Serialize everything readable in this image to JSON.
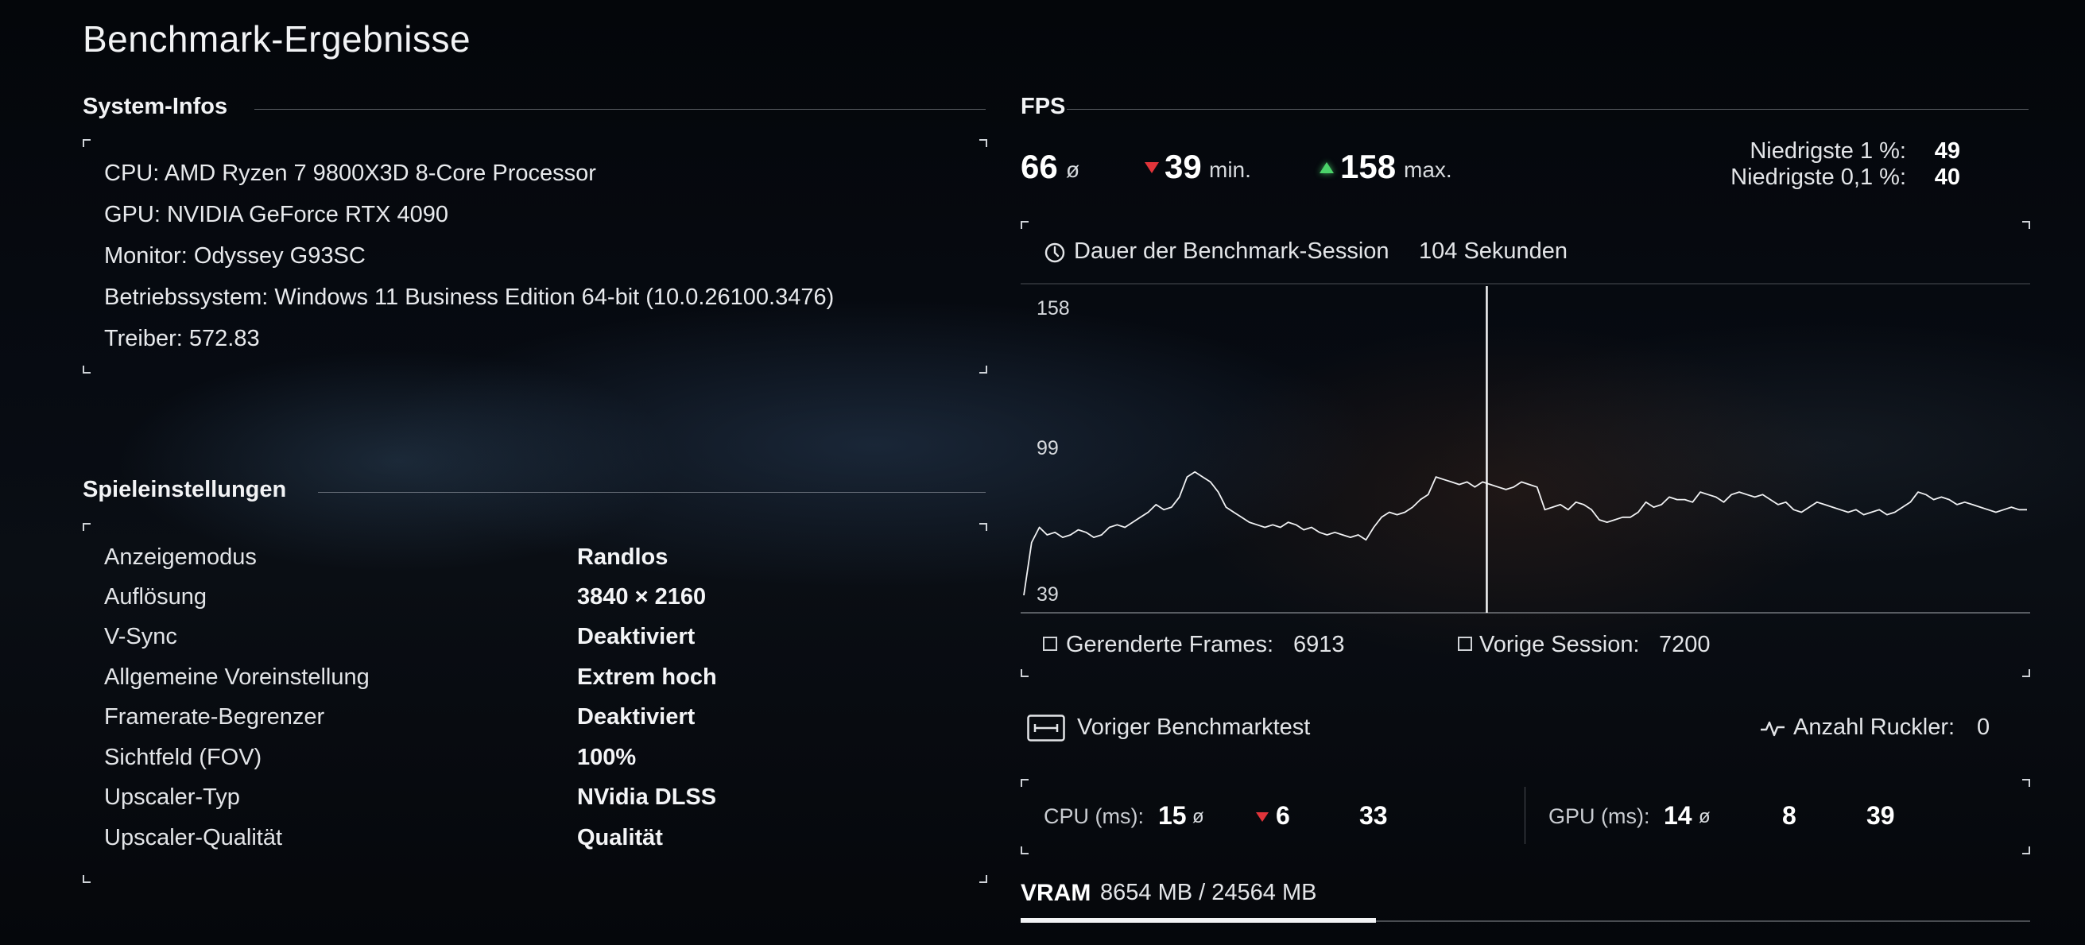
{
  "page": {
    "title": "Benchmark-Ergebnisse"
  },
  "system": {
    "heading": "System-Infos",
    "lines": [
      "CPU: AMD Ryzen 7 9800X3D 8-Core Processor",
      "GPU: NVIDIA GeForce RTX 4090",
      "Monitor: Odyssey G93SC",
      "Betriebssystem: Windows 11 Business Edition 64-bit (10.0.26100.3476)",
      "Treiber: 572.83"
    ]
  },
  "settings": {
    "heading": "Spieleinstellungen",
    "rows": [
      {
        "label": "Anzeigemodus",
        "value": "Randlos"
      },
      {
        "label": "Auflösung",
        "value": "3840 × 2160"
      },
      {
        "label": "V-Sync",
        "value": "Deaktiviert"
      },
      {
        "label": "Allgemeine Voreinstellung",
        "value": "Extrem hoch"
      },
      {
        "label": "Framerate-Begrenzer",
        "value": "Deaktiviert"
      },
      {
        "label": "Sichtfeld (FOV)",
        "value": "100%"
      },
      {
        "label": "Upscaler-Typ",
        "value": "NVidia DLSS"
      },
      {
        "label": "Upscaler-Qualität",
        "value": "Qualität"
      }
    ]
  },
  "fps": {
    "heading": "FPS",
    "avg": "66",
    "avg_symbol": "ø",
    "min": "39",
    "min_label": "min.",
    "max": "158",
    "max_label": "max.",
    "low1_label": "Niedrigste 1 %:",
    "low1_value": "49",
    "low01_label": "Niedrigste 0,1 %:",
    "low01_value": "40",
    "session_label": "Dauer der Benchmark-Session",
    "session_value": "104 Sekunden",
    "rendered_label": "Gerenderte Frames:",
    "rendered_value": "6913",
    "prev_label": "Vorige Session:",
    "prev_value": "7200"
  },
  "prev_test": {
    "label": "Voriger Benchmarktest",
    "stutter_label": "Anzahl Ruckler:",
    "stutter_value": "0"
  },
  "cpu": {
    "label": "CPU (ms):",
    "avg": "15",
    "avg_symbol": "ø",
    "min": "6",
    "max": "33"
  },
  "gpu": {
    "label": "GPU (ms):",
    "avg": "14",
    "avg_symbol": "ø",
    "min": "8",
    "max": "39"
  },
  "vram": {
    "label": "VRAM",
    "value": "8654 MB / 24564 MB",
    "used_mb": 8654,
    "total_mb": 24564
  },
  "chart_data": {
    "type": "line",
    "yticks": [
      "158",
      "99",
      "39"
    ],
    "ylim": [
      39,
      158
    ],
    "duration_s": 104,
    "marker_time_s": 48,
    "series": [
      {
        "values": [
          39,
          60,
          66,
          63,
          64,
          62,
          63,
          65,
          64,
          62,
          63,
          66,
          67,
          66,
          68,
          70,
          72,
          75,
          73,
          74,
          78,
          86,
          88,
          86,
          84,
          80,
          74,
          72,
          70,
          68,
          67,
          66,
          67,
          66,
          68,
          67,
          65,
          66,
          64,
          63,
          64,
          63,
          62,
          63,
          61,
          66,
          70,
          72,
          71,
          72,
          74,
          77,
          79,
          86,
          85,
          84,
          83,
          84,
          82,
          84,
          83,
          82,
          81,
          82,
          84,
          83,
          82,
          73,
          74,
          75,
          73,
          76,
          75,
          73,
          69,
          68,
          69,
          70,
          70,
          72,
          76,
          74,
          75,
          78,
          77,
          77,
          76,
          80,
          79,
          78,
          76,
          79,
          80,
          79,
          78,
          79,
          77,
          75,
          76,
          73,
          72,
          74,
          76,
          75,
          74,
          73,
          72,
          73,
          71,
          72,
          73,
          71,
          72,
          74,
          76,
          80,
          79,
          77,
          78,
          77,
          75,
          76,
          75,
          74,
          73,
          72,
          73,
          74,
          73,
          73
        ]
      }
    ]
  },
  "colors": {
    "accent_up": "#4bd36a",
    "accent_down": "#e0343a",
    "text": "#e6e8eb"
  }
}
